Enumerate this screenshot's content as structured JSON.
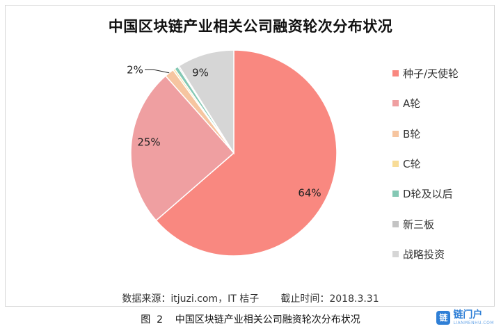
{
  "chart_data": {
    "type": "pie",
    "title": "中国区块链产业相关公司融资轮次分布状况",
    "slices": [
      {
        "name": "种子/天使轮",
        "value": 64,
        "label": "64%",
        "color": "#f98880"
      },
      {
        "name": "A轮",
        "value": 25,
        "label": "25%",
        "color": "#ef9fa1"
      },
      {
        "name": "B轮",
        "value": 1.5,
        "label": "2%",
        "color": "#f6c5a0"
      },
      {
        "name": "C轮",
        "value": 0.3,
        "label": "",
        "color": "#f8dc97"
      },
      {
        "name": "D轮及以后",
        "value": 0.6,
        "label": "",
        "color": "#84c8b4"
      },
      {
        "name": "新三板",
        "value": 0.2,
        "label": "",
        "color": "#c4c4c4"
      },
      {
        "name": "战略投资",
        "value": 9,
        "label": "9%",
        "color": "#d6d6d6"
      }
    ],
    "legend_position": "right"
  },
  "source": "数据来源：itjuzi.com，IT 桔子       截止时间：2018.3.31",
  "caption": "图  2    中国区块链产业相关公司融资轮次分布状况",
  "brand": {
    "name": "链门户",
    "sub": "LIANMENHU.COM",
    "icon": "链"
  }
}
